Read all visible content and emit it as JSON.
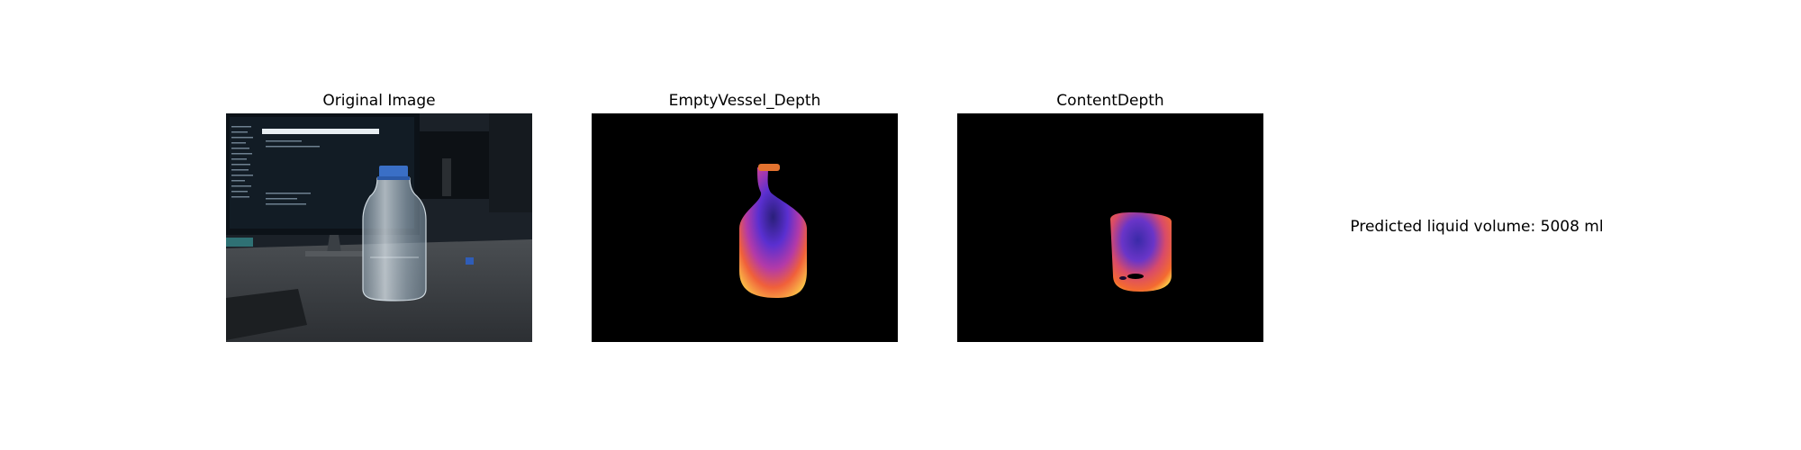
{
  "panels": [
    {
      "title": "Original Image"
    },
    {
      "title": "EmptyVessel_Depth"
    },
    {
      "title": "ContentDepth"
    }
  ],
  "result": {
    "text": "Predicted liquid volume: 5008 ml"
  },
  "colors": {
    "background": "#ffffff",
    "depth_background": "#000000",
    "depth_high": "#fcd04a",
    "depth_mid": "#f0603a",
    "depth_low": "#5a2fd0"
  }
}
